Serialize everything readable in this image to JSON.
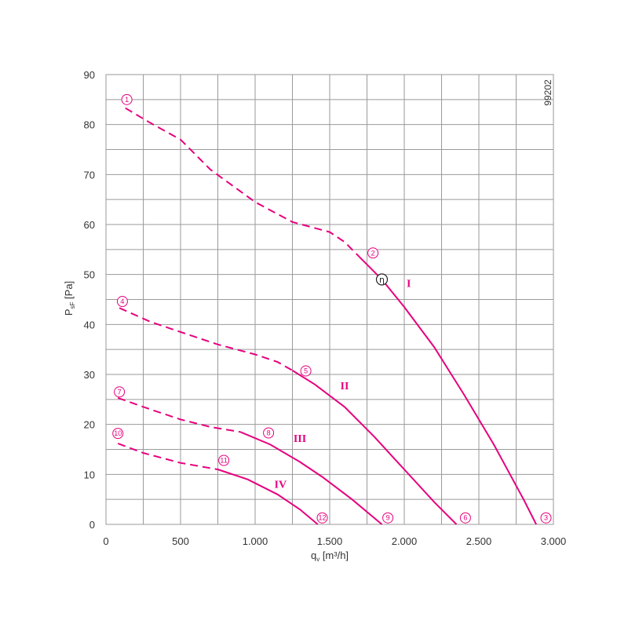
{
  "chart_data": {
    "type": "line",
    "figure_code": "99202",
    "xlabel": "q",
    "xlabel_sub": "v",
    "xlabel_unit": "[m³/h]",
    "ylabel": "P",
    "ylabel_sub": "sF",
    "ylabel_unit": "[Pa]",
    "xlim": [
      0,
      3000
    ],
    "ylim": [
      0,
      90
    ],
    "x_ticks": [
      0,
      500,
      1000,
      1500,
      2000,
      2500,
      3000
    ],
    "x_tick_labels": [
      "0",
      "500",
      "1.000",
      "1.500",
      "2.000",
      "2.500",
      "3.000"
    ],
    "y_ticks": [
      0,
      10,
      20,
      30,
      40,
      50,
      60,
      70,
      80,
      90
    ],
    "y_tick_labels": [
      "0",
      "10",
      "20",
      "30",
      "40",
      "50",
      "60",
      "70",
      "80",
      "90"
    ],
    "grid": true,
    "color": "#e6007e",
    "series": [
      {
        "name": "I",
        "dashed": [
          [
            130,
            83.3
          ],
          [
            300,
            80.3
          ],
          [
            500,
            77
          ],
          [
            700,
            71
          ],
          [
            1000,
            64.5
          ],
          [
            1250,
            60.5
          ],
          [
            1500,
            58.5
          ],
          [
            1600,
            56.5
          ],
          [
            1700,
            53.5
          ]
        ],
        "solid": [
          [
            1700,
            53.5
          ],
          [
            1850,
            49
          ],
          [
            2000,
            43.5
          ],
          [
            2200,
            35.5
          ],
          [
            2400,
            26
          ],
          [
            2600,
            16
          ],
          [
            2800,
            5
          ],
          [
            2885,
            0
          ]
        ]
      },
      {
        "name": "II",
        "dashed": [
          [
            90,
            43.3
          ],
          [
            300,
            40.5
          ],
          [
            550,
            38
          ],
          [
            750,
            36
          ],
          [
            1000,
            34
          ],
          [
            1150,
            32.5
          ],
          [
            1250,
            30.8
          ]
        ],
        "solid": [
          [
            1250,
            30.8
          ],
          [
            1400,
            28
          ],
          [
            1600,
            23.5
          ],
          [
            1800,
            17.5
          ],
          [
            2000,
            11
          ],
          [
            2200,
            4.5
          ],
          [
            2350,
            0
          ]
        ]
      },
      {
        "name": "III",
        "dashed": [
          [
            80,
            25.3
          ],
          [
            300,
            23
          ],
          [
            500,
            21
          ],
          [
            700,
            19.5
          ],
          [
            900,
            18.5
          ]
        ],
        "solid": [
          [
            900,
            18.5
          ],
          [
            1100,
            16
          ],
          [
            1300,
            12.5
          ],
          [
            1450,
            9.5
          ],
          [
            1650,
            5
          ],
          [
            1850,
            0
          ]
        ]
      },
      {
        "name": "IV",
        "dashed": [
          [
            80,
            16.2
          ],
          [
            250,
            14.3
          ],
          [
            500,
            12.3
          ],
          [
            750,
            11
          ]
        ],
        "solid": [
          [
            750,
            11
          ],
          [
            950,
            9
          ],
          [
            1150,
            6
          ],
          [
            1300,
            3
          ],
          [
            1420,
            0
          ]
        ]
      }
    ],
    "series_labels": [
      {
        "text": "I",
        "x": 2030,
        "y": 47.5
      },
      {
        "text": "II",
        "x": 1600,
        "y": 27
      },
      {
        "text": "III",
        "x": 1300,
        "y": 16.5
      },
      {
        "text": "IV",
        "x": 1170,
        "y": 7.3
      }
    ],
    "efficiency_marker": {
      "symbol": "η",
      "x": 1850,
      "y": 49
    },
    "operating_points": [
      {
        "label": "1",
        "x": 140,
        "y": 85
      },
      {
        "label": "2",
        "x": 1790,
        "y": 54.3
      },
      {
        "label": "3",
        "x": 2950,
        "y": 1.3
      },
      {
        "label": "4",
        "x": 110,
        "y": 44.6
      },
      {
        "label": "5",
        "x": 1340,
        "y": 30.7
      },
      {
        "label": "6",
        "x": 2410,
        "y": 1.3
      },
      {
        "label": "7",
        "x": 90,
        "y": 26.5
      },
      {
        "label": "8",
        "x": 1090,
        "y": 18.3
      },
      {
        "label": "9",
        "x": 1890,
        "y": 1.3
      },
      {
        "label": "10",
        "x": 80,
        "y": 18.2
      },
      {
        "label": "11",
        "x": 790,
        "y": 12.8
      },
      {
        "label": "12",
        "x": 1450,
        "y": 1.3
      }
    ]
  }
}
